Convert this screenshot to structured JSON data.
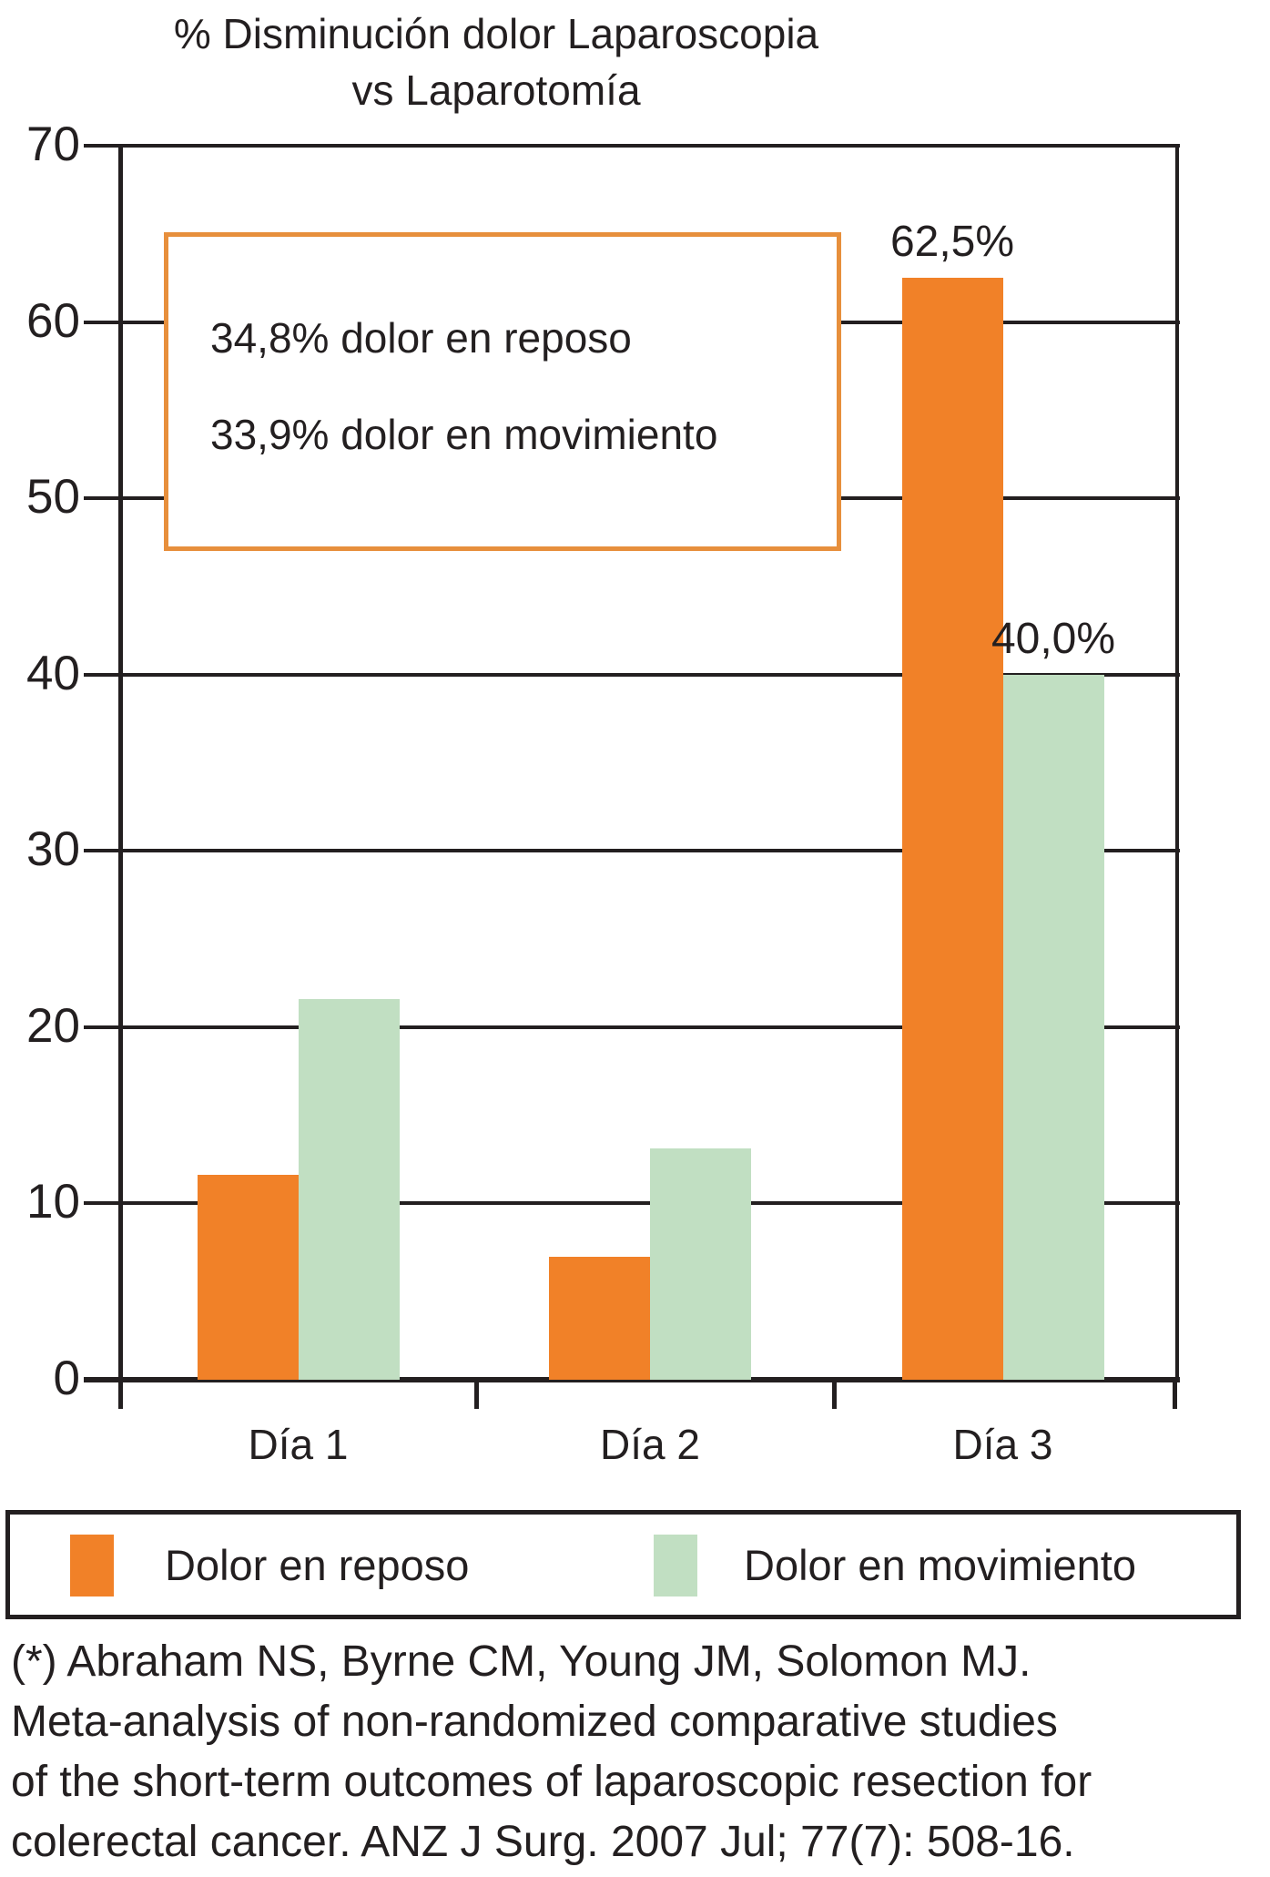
{
  "title": {
    "line1": "% Disminución dolor Laparoscopia",
    "line2": "vs Laparotomía"
  },
  "annotation": {
    "line1": "34,8% dolor en reposo",
    "line2": "33,9% dolor en movimiento"
  },
  "footer": {
    "lines": [
      "(*) Abraham NS, Byrne CM, Young JM, Solomon MJ.",
      "Meta-analysis of non-randomized comparative studies",
      "of the short-term outcomes of laparoscopic resection for",
      "colerectal cancer. ANZ J Surg. 2007 Jul; 77(7): 508-16."
    ]
  },
  "colors": {
    "bar_orange": "#F18128",
    "bar_green": "#C1DFC2",
    "annotation_border": "#E78F3C",
    "line_black": "#231F20"
  },
  "chart_data": {
    "type": "bar",
    "categories": [
      "Día 1",
      "Día 2",
      "Día 3"
    ],
    "series": [
      {
        "name": "Dolor en reposo",
        "color": "#F18128",
        "values": [
          11.6,
          7.0,
          62.5
        ]
      },
      {
        "name": "Dolor en movimiento",
        "color": "#C1DFC2",
        "values": [
          21.6,
          13.1,
          40.0
        ]
      }
    ],
    "point_labels": [
      {
        "series": 0,
        "category": 2,
        "text": "62,5%"
      },
      {
        "series": 1,
        "category": 2,
        "text": "40,0%"
      }
    ],
    "ylim": [
      0,
      70
    ],
    "yticks": [
      0,
      10,
      20,
      30,
      40,
      50,
      60,
      70
    ],
    "grid": true,
    "legend_position": "bottom"
  }
}
